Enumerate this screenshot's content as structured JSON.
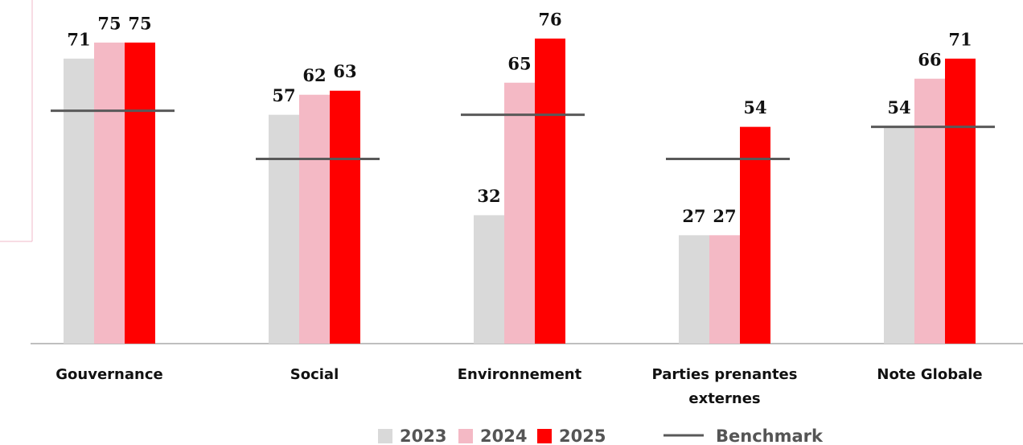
{
  "chart_data": {
    "type": "bar",
    "categories": [
      "Gouvernance",
      "Social",
      "Environnement",
      "Parties prenantes externes",
      "Note Globale"
    ],
    "series": [
      {
        "name": "2023",
        "color": "#d9d9d9",
        "values": [
          71,
          57,
          32,
          27,
          54
        ]
      },
      {
        "name": "2024",
        "color": "#f4b9c5",
        "values": [
          75,
          62,
          65,
          27,
          66
        ]
      },
      {
        "name": "2025",
        "color": "#ff0000",
        "values": [
          75,
          63,
          76,
          54,
          71
        ]
      }
    ],
    "benchmark": {
      "name": "Benchmark",
      "color": "#595959",
      "values": [
        58,
        46,
        57,
        46,
        54
      ]
    },
    "ylim": [
      0,
      85
    ]
  }
}
